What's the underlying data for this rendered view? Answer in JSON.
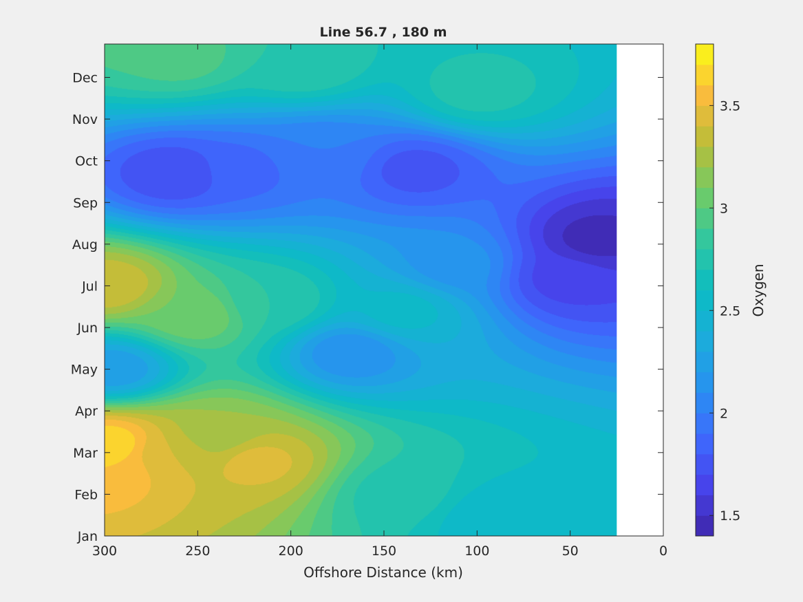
{
  "chart_data": {
    "type": "heatmap",
    "subtype": "filled-contour",
    "title": "Line 56.7 , 180 m",
    "xlabel": "Offshore Distance (km)",
    "ylabel": "",
    "x_direction": "reversed",
    "xlim": [
      0,
      300
    ],
    "x_ticks": [
      300,
      250,
      200,
      150,
      100,
      50,
      0
    ],
    "x_tick_labels": [
      "300",
      "250",
      "200",
      "150",
      "100",
      "50",
      "0"
    ],
    "y_tick_labels": [
      "Jan",
      "Feb",
      "Mar",
      "Apr",
      "May",
      "Jun",
      "Jul",
      "Aug",
      "Sep",
      "Oct",
      "Nov",
      "Dec"
    ],
    "data_extent_km": [
      25,
      300
    ],
    "colorbar": {
      "label": "Oxygen",
      "range": [
        1.4,
        3.8
      ],
      "levels": 24,
      "ticks": [
        1.5,
        2,
        2.5,
        3,
        3.5
      ],
      "tick_labels": [
        "1.5",
        "2",
        "2.5",
        "3",
        "3.5"
      ],
      "colormap": "parula"
    },
    "features": [
      {
        "x": 297,
        "month": 2.2,
        "value": 3.7
      },
      {
        "x": 300,
        "month": 1.6,
        "value": 3.6
      },
      {
        "x": 265,
        "month": 2.0,
        "value": 3.4
      },
      {
        "x": 219,
        "month": 1.8,
        "value": 3.45
      },
      {
        "x": 240,
        "month": 2.4,
        "value": 3.2
      },
      {
        "x": 298,
        "month": 6.0,
        "value": 3.4
      },
      {
        "x": 252,
        "month": 5.3,
        "value": 3.1
      },
      {
        "x": 210,
        "month": 5.6,
        "value": 2.8
      },
      {
        "x": 295,
        "month": 4.0,
        "value": 2.2
      },
      {
        "x": 262,
        "month": 8.7,
        "value": 1.7
      },
      {
        "x": 226,
        "month": 8.8,
        "value": 1.85
      },
      {
        "x": 185,
        "month": 9.2,
        "value": 2.0
      },
      {
        "x": 133,
        "month": 8.8,
        "value": 1.75
      },
      {
        "x": 36,
        "month": 7.1,
        "value": 1.45
      },
      {
        "x": 52,
        "month": 6.2,
        "value": 1.65
      },
      {
        "x": 112,
        "month": 6.5,
        "value": 2.15
      },
      {
        "x": 168,
        "month": 4.4,
        "value": 2.1
      },
      {
        "x": 140,
        "month": 5.4,
        "value": 2.55
      },
      {
        "x": 140,
        "month": 1.0,
        "value": 2.75
      },
      {
        "x": 90,
        "month": 0.4,
        "value": 2.5
      },
      {
        "x": 260,
        "month": 11.5,
        "value": 2.95
      },
      {
        "x": 195,
        "month": 11.3,
        "value": 2.8
      },
      {
        "x": 100,
        "month": 10.7,
        "value": 2.75
      },
      {
        "x": 280,
        "month": 12.0,
        "value": 2.95
      }
    ]
  }
}
